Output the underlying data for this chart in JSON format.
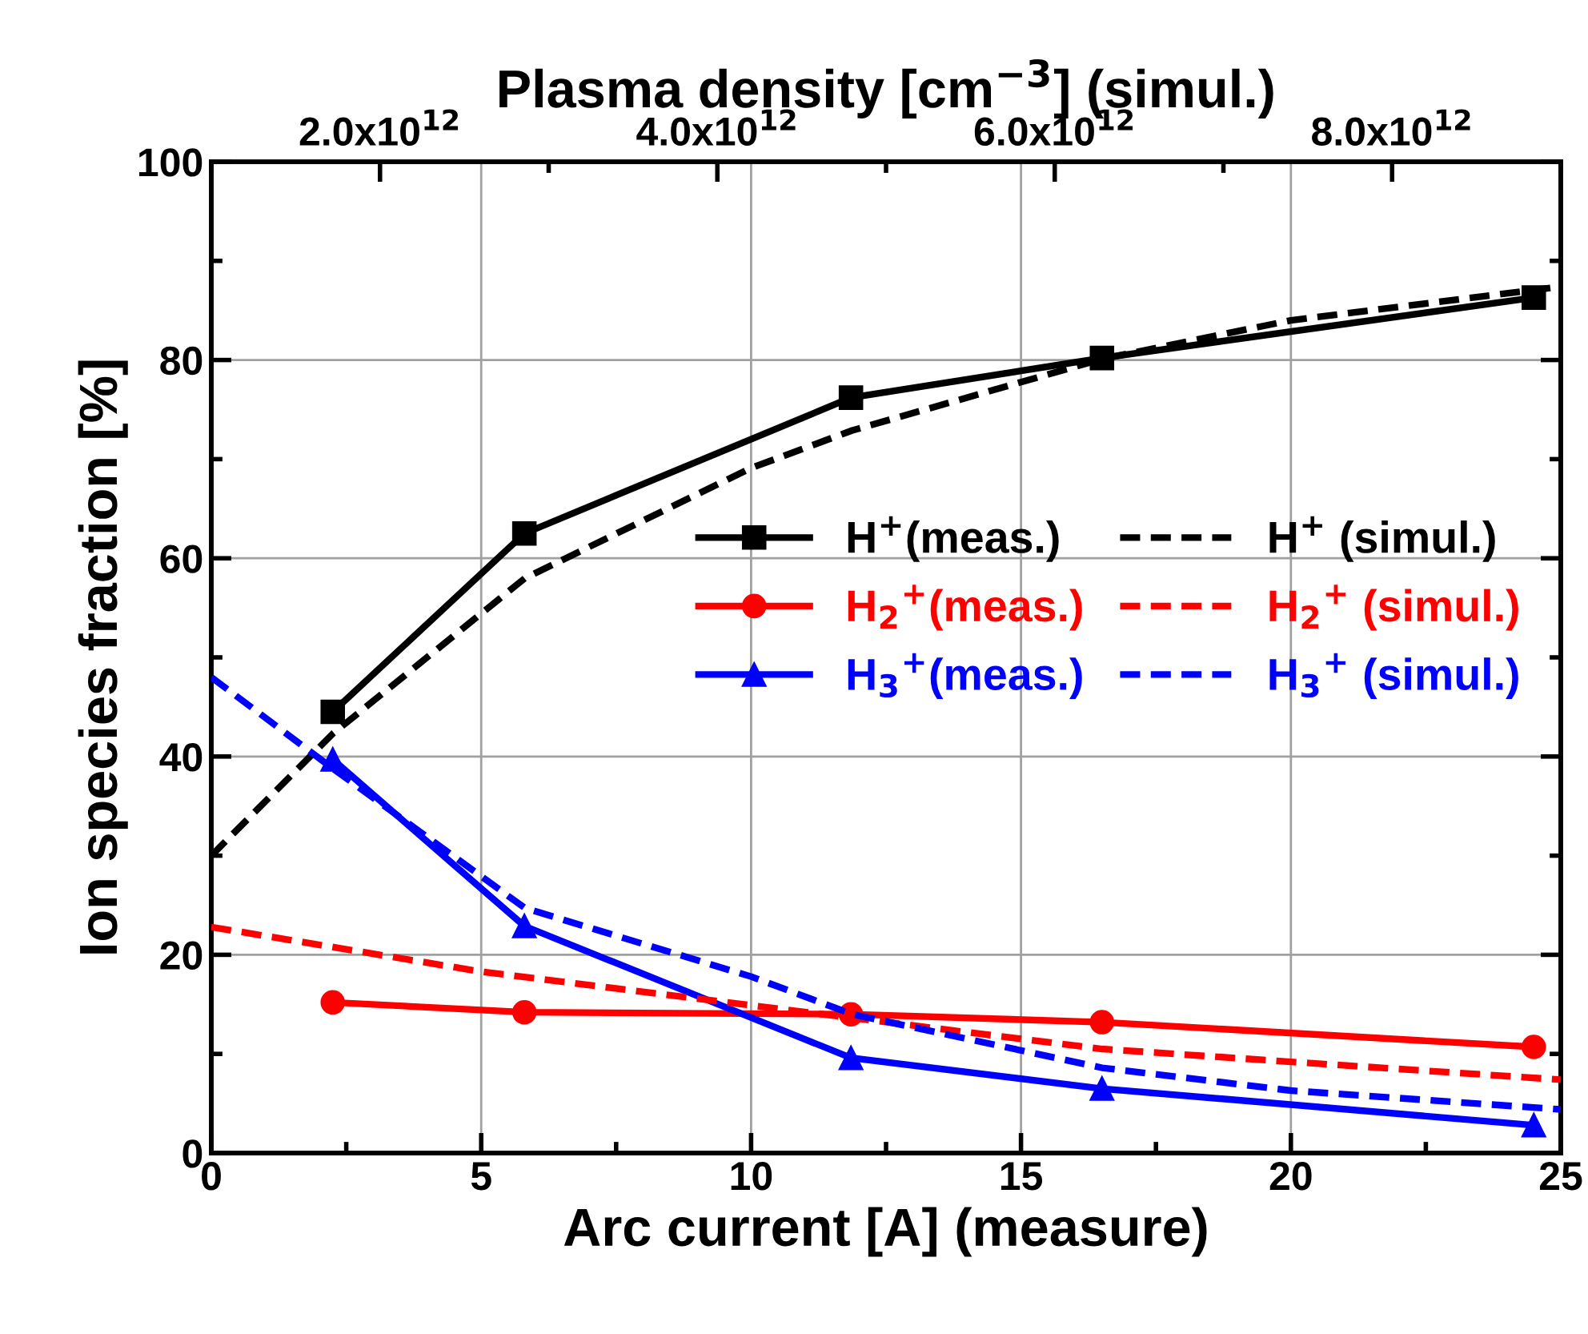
{
  "chart_data": {
    "type": "line",
    "xlabel": "Arc current [A] (measure)",
    "ylabel": "Ion species fraction [%]",
    "x2label": "Plasma density [cm$^{−3}$] (simul.)",
    "xlim": [
      0,
      25
    ],
    "xticks": [
      0,
      5,
      10,
      15,
      20,
      25
    ],
    "ylim": [
      0,
      100
    ],
    "yticks": [
      0,
      20,
      40,
      60,
      80,
      100
    ],
    "x2lim": [
      1000000000000.0,
      9000000000000.0
    ],
    "x2ticks": [
      {
        "value": 2000000000000.0,
        "label": "2.0x10$^{12}$"
      },
      {
        "value": 4000000000000.0,
        "label": "4.0x10$^{12}$"
      },
      {
        "value": 6000000000000.0,
        "label": "6.0x10$^{12}$"
      },
      {
        "value": 8000000000000.0,
        "label": "8.0x10$^{12}$"
      }
    ],
    "grid": true,
    "legend": "right",
    "series": [
      {
        "name": "H$^{+}$(meas.)",
        "color": "#000000",
        "marker": "square",
        "line_style": "solid",
        "x": [
          2.25,
          5.8,
          11.85,
          16.5,
          24.5
        ],
        "values": [
          44.5,
          62.5,
          76.2,
          80.2,
          86.3
        ]
      },
      {
        "name": "H$_{2}$$^{+}$(meas.)",
        "color": "#ff0000",
        "marker": "circle",
        "line_style": "solid",
        "x": [
          2.25,
          5.8,
          11.85,
          16.5,
          24.5
        ],
        "values": [
          15.2,
          14.2,
          14.0,
          13.2,
          10.7
        ]
      },
      {
        "name": "H$_{3}$$^{+}$(meas.)",
        "color": "#0000ff",
        "marker": "triangle",
        "line_style": "solid",
        "x": [
          2.25,
          5.8,
          11.85,
          16.5,
          24.5
        ],
        "values": [
          39.7,
          22.9,
          9.6,
          6.5,
          2.8
        ]
      },
      {
        "name": "H$^{+}$ (simul.)",
        "color": "#000000",
        "marker": "none",
        "line_style": "dashed",
        "axis": "x2",
        "x": [
          1000000000000.0,
          1720000000000.0,
          2860000000000.0,
          4200000000000.0,
          4800000000000.0,
          6280000000000.0,
          7400000000000.0,
          9000000000000.0
        ],
        "values": [
          30,
          42.3,
          58,
          69.1,
          72.9,
          80.1,
          84,
          87.4
        ]
      },
      {
        "name": "H$_{2}$$^{+}$ (simul.)",
        "color": "#ff0000",
        "marker": "none",
        "line_style": "dashed",
        "axis": "x2",
        "x": [
          1000000000000.0,
          2600000000000.0,
          4200000000000.0,
          6280000000000.0,
          7400000000000.0,
          9000000000000.0
        ],
        "values": [
          22.8,
          18.3,
          14.9,
          10.5,
          9.2,
          7.4
        ]
      },
      {
        "name": "H$_{3}$$^{+}$ (simul.)",
        "color": "#0000ff",
        "marker": "none",
        "line_style": "dashed",
        "axis": "x2",
        "x": [
          1000000000000.0,
          1720000000000.0,
          2860000000000.0,
          4200000000000.0,
          4800000000000.0,
          6280000000000.0,
          7400000000000.0,
          9000000000000.0
        ],
        "values": [
          48,
          38.8,
          24.7,
          17.8,
          14,
          8.6,
          6.3,
          4.4
        ]
      }
    ]
  }
}
